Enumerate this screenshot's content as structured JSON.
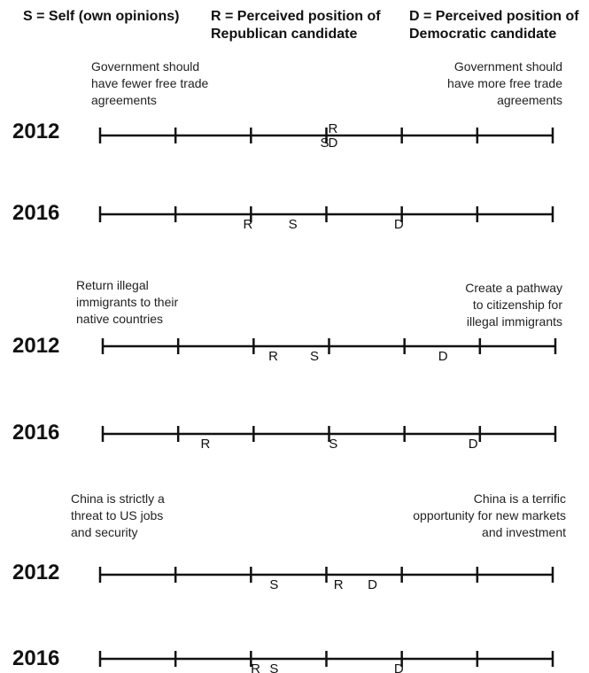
{
  "legend": {
    "self": "S = Self (own opinions)",
    "republican_l1": "R = Perceived position of",
    "republican_l2": "Republican candidate",
    "democratic_l1": "D = Perceived position of",
    "democratic_l2": "Democratic candidate"
  },
  "panels": [
    {
      "left_label": [
        "Government should",
        "have fewer free trade",
        "agreements"
      ],
      "right_label": [
        "Government should",
        "have more free trade",
        "agreements"
      ],
      "rows": [
        {
          "year": "2012",
          "S": 3.0,
          "R": 3.0,
          "D": 3.0
        },
        {
          "year": "2016",
          "S": 2.45,
          "R": 1.85,
          "D": 3.85
        }
      ]
    },
    {
      "left_label": [
        "Return illegal",
        "immigrants to their",
        "native countries"
      ],
      "right_label": [
        "Create a pathway",
        "to citizenship for",
        "illegal immigrants"
      ],
      "rows": [
        {
          "year": "2012",
          "S": 2.7,
          "R": 2.15,
          "D": 4.4
        },
        {
          "year": "2016",
          "S": 2.95,
          "R": 1.25,
          "D": 4.8
        }
      ]
    },
    {
      "left_label": [
        "China is strictly a",
        "threat to US jobs",
        "and security"
      ],
      "right_label": [
        "China is a terrific",
        "opportunity for new markets",
        "and investment"
      ],
      "rows": [
        {
          "year": "2012",
          "S": 2.2,
          "R": 3.05,
          "D": 3.5
        },
        {
          "year": "2016",
          "S": 2.2,
          "R": 1.95,
          "D": 3.85
        }
      ]
    }
  ],
  "scale": {
    "min": 0,
    "max": 6,
    "ticks": 7
  }
}
